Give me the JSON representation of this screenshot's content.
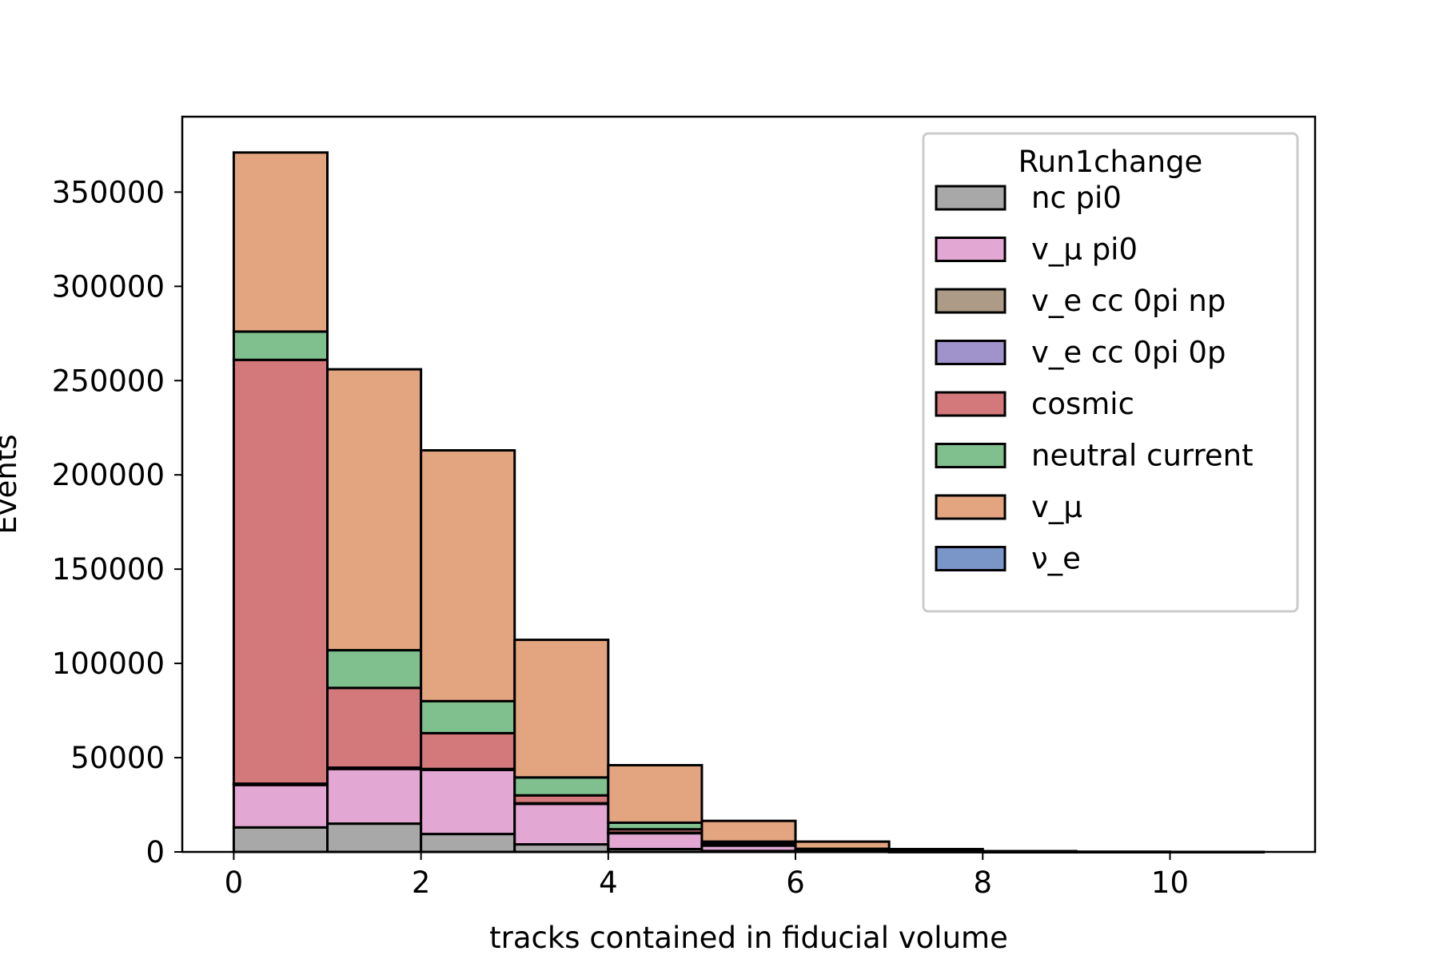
{
  "chart_data": {
    "type": "bar",
    "stacked": true,
    "histogram": true,
    "title": "",
    "xlabel": "tracks contained in fiducial volume",
    "ylabel": "Events",
    "bin_edges": [
      0,
      1,
      2,
      3,
      4,
      5,
      6,
      7,
      8,
      9,
      10,
      11
    ],
    "xlim": [
      -0.55,
      11.55
    ],
    "ylim": [
      0,
      390000
    ],
    "xticks": [
      0,
      2,
      4,
      6,
      8,
      10
    ],
    "xtick_labels": [
      "0",
      "2",
      "4",
      "6",
      "8",
      "10"
    ],
    "yticks": [
      0,
      50000,
      100000,
      150000,
      200000,
      250000,
      300000,
      350000
    ],
    "ytick_labels": [
      "0",
      "50000",
      "100000",
      "150000",
      "200000",
      "250000",
      "300000",
      "350000"
    ],
    "grid": false,
    "legend": {
      "title": "Run1change",
      "placement": "top-right",
      "entries": [
        "nc pi0",
        "v_μ pi0",
        "v_e cc 0pi np",
        "v_e cc 0pi 0p",
        "cosmic",
        "neutral current",
        "v_μ",
        "ν_e"
      ]
    },
    "series": [
      {
        "name": "nc pi0",
        "color": "#a8a8a8",
        "values": [
          13000,
          15000,
          9500,
          4000,
          1500,
          500,
          200,
          50,
          10,
          0,
          0
        ]
      },
      {
        "name": "v_μ pi0",
        "color": "#e2a7d3",
        "values": [
          22500,
          29000,
          34000,
          21500,
          8500,
          3000,
          800,
          250,
          50,
          10,
          0
        ]
      },
      {
        "name": "v_e cc 0pi np",
        "color": "#ad9a87",
        "values": [
          500,
          500,
          400,
          200,
          100,
          50,
          10,
          0,
          0,
          0,
          0
        ]
      },
      {
        "name": "v_e cc 0pi 0p",
        "color": "#a093cc",
        "values": [
          200,
          200,
          100,
          100,
          50,
          10,
          0,
          0,
          0,
          0,
          0
        ]
      },
      {
        "name": "cosmic",
        "color": "#d3797c",
        "values": [
          224800,
          42300,
          19000,
          4200,
          1850,
          900,
          300,
          100,
          30,
          10,
          0
        ]
      },
      {
        "name": "neutral current",
        "color": "#80bf8e",
        "values": [
          15000,
          20000,
          17000,
          9500,
          3500,
          1000,
          350,
          100,
          30,
          10,
          0
        ]
      },
      {
        "name": "v_μ",
        "color": "#e2a57f",
        "values": [
          95000,
          149000,
          133000,
          73000,
          30500,
          11000,
          3800,
          1000,
          300,
          80,
          20
        ]
      },
      {
        "name": "ν_e",
        "color": "#7a95c7",
        "values": [
          0,
          0,
          0,
          0,
          0,
          0,
          0,
          0,
          0,
          0,
          0
        ]
      }
    ]
  }
}
